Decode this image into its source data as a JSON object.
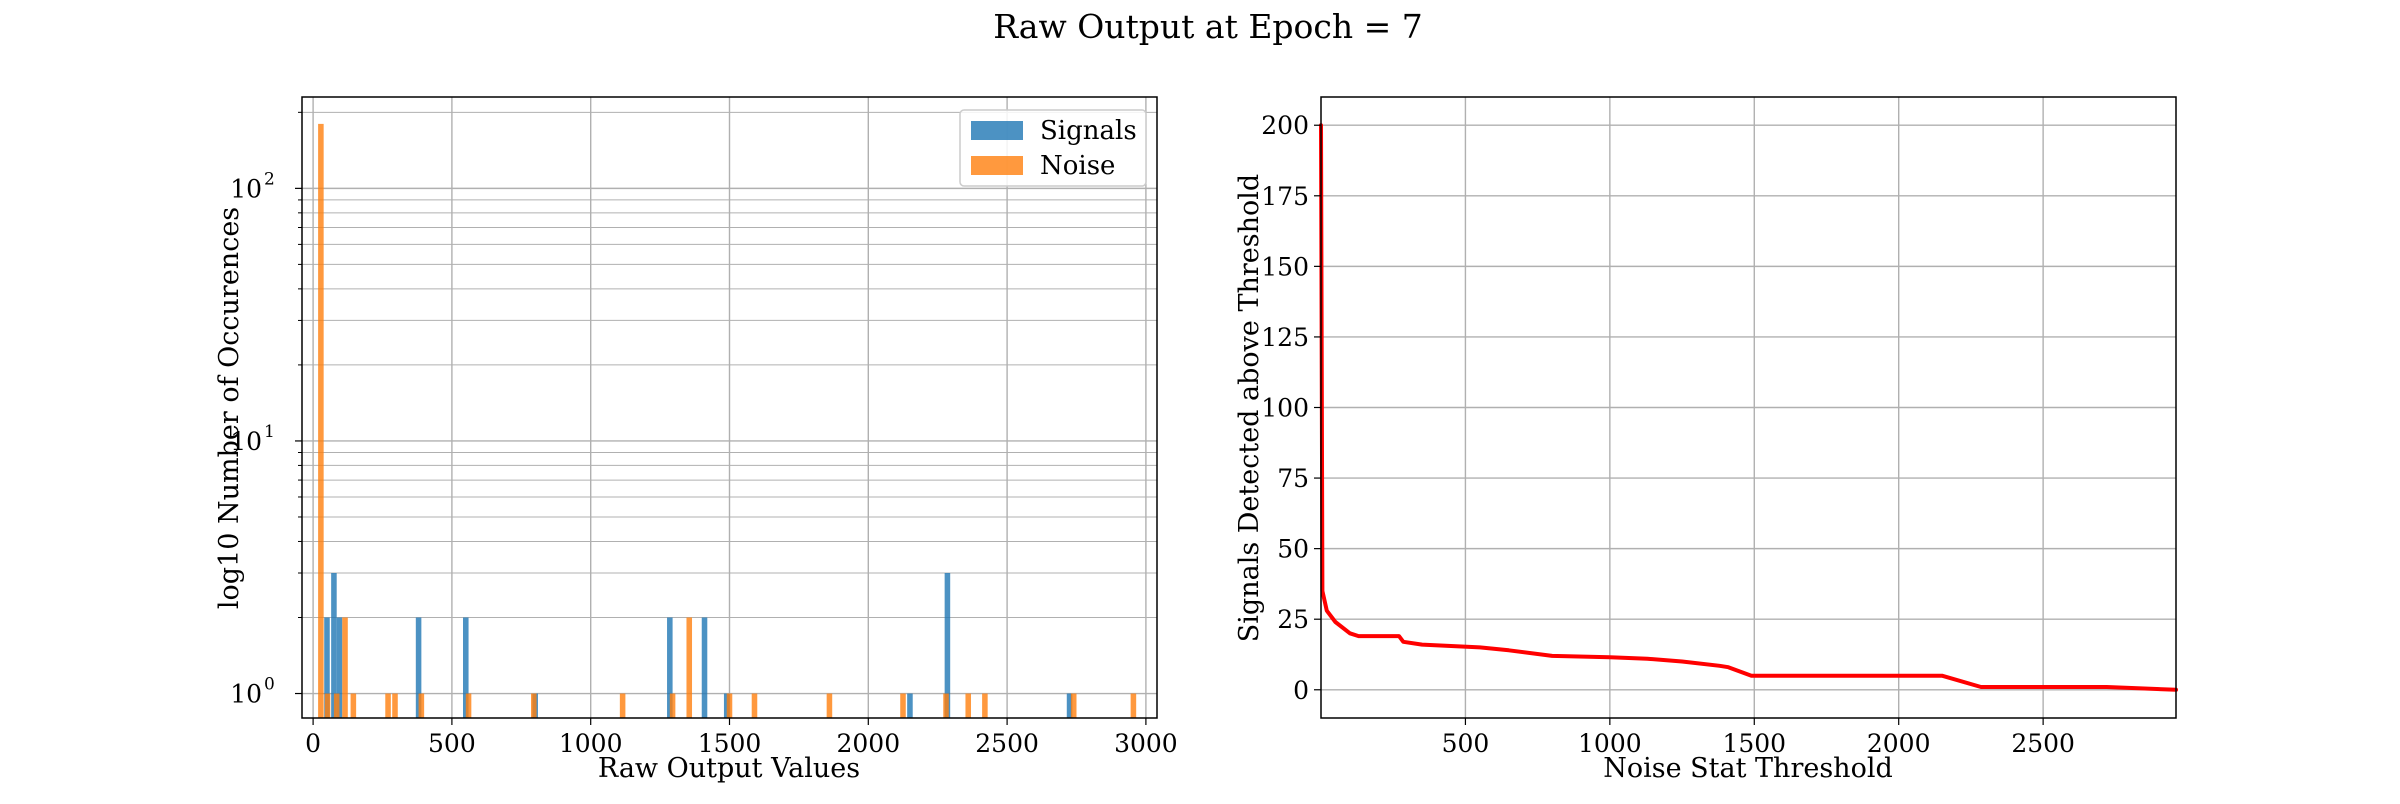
{
  "figure": {
    "title": "Raw Output at Epoch = 7"
  },
  "colors": {
    "signals": "#1f77b4",
    "noise": "#ff7f0e",
    "curve": "#ff0000",
    "grid": "#b0b0b0"
  },
  "chart_data": [
    {
      "type": "bar",
      "subtype": "histogram",
      "xlabel": "Raw Output Values",
      "ylabel": "log10 Number of Occurences",
      "xlim": [
        -40,
        3040
      ],
      "ylim": [
        0.8,
        230
      ],
      "yscale": "log",
      "grid": true,
      "legend": {
        "position": "top-right",
        "entries": [
          "Signals",
          "Noise"
        ]
      },
      "xticks": [
        0,
        500,
        1000,
        1500,
        2000,
        2500,
        3000
      ],
      "yticks": [
        {
          "value": 1,
          "mantissa": "10",
          "exponent": "0"
        },
        {
          "value": 10,
          "mantissa": "10",
          "exponent": "1"
        },
        {
          "value": 100,
          "mantissa": "10",
          "exponent": "2"
        }
      ],
      "bin_width": 20,
      "series": [
        {
          "name": "Signals",
          "color": "#1f77b4",
          "alpha": 0.8,
          "bars": [
            {
              "x": 50,
              "count": 2
            },
            {
              "x": 75,
              "count": 3
            },
            {
              "x": 95,
              "count": 2
            },
            {
              "x": 380,
              "count": 2
            },
            {
              "x": 550,
              "count": 2
            },
            {
              "x": 800,
              "count": 1
            },
            {
              "x": 1285,
              "count": 2
            },
            {
              "x": 1410,
              "count": 2
            },
            {
              "x": 1490,
              "count": 1
            },
            {
              "x": 2150,
              "count": 1
            },
            {
              "x": 2285,
              "count": 3
            },
            {
              "x": 2725,
              "count": 1
            }
          ]
        },
        {
          "name": "Noise",
          "color": "#ff7f0e",
          "alpha": 0.8,
          "bars": [
            {
              "x": 28,
              "count": 180
            },
            {
              "x": 52,
              "count": 1
            },
            {
              "x": 85,
              "count": 1
            },
            {
              "x": 115,
              "count": 2
            },
            {
              "x": 145,
              "count": 1
            },
            {
              "x": 270,
              "count": 1
            },
            {
              "x": 295,
              "count": 1
            },
            {
              "x": 390,
              "count": 1
            },
            {
              "x": 560,
              "count": 1
            },
            {
              "x": 795,
              "count": 1
            },
            {
              "x": 1115,
              "count": 1
            },
            {
              "x": 1295,
              "count": 1
            },
            {
              "x": 1355,
              "count": 2
            },
            {
              "x": 1500,
              "count": 1
            },
            {
              "x": 1590,
              "count": 1
            },
            {
              "x": 1860,
              "count": 1
            },
            {
              "x": 2125,
              "count": 1
            },
            {
              "x": 2280,
              "count": 1
            },
            {
              "x": 2360,
              "count": 1
            },
            {
              "x": 2420,
              "count": 1
            },
            {
              "x": 2740,
              "count": 1
            },
            {
              "x": 2955,
              "count": 1
            }
          ]
        }
      ]
    },
    {
      "type": "line",
      "xlabel": "Noise Stat Threshold",
      "ylabel": "Signals Detected above Threshold",
      "xlim": [
        0,
        2960
      ],
      "ylim": [
        -10,
        210
      ],
      "yscale": "linear",
      "grid": true,
      "xticks": [
        500,
        1000,
        1500,
        2000,
        2500
      ],
      "yticks": [
        0,
        25,
        50,
        75,
        100,
        125,
        150,
        175,
        200
      ],
      "series": [
        {
          "name": "",
          "color": "#ff0000",
          "points": [
            [
              0,
              200
            ],
            [
              5,
              35
            ],
            [
              20,
              28
            ],
            [
              50,
              24
            ],
            [
              100,
              20
            ],
            [
              130,
              19
            ],
            [
              200,
              19
            ],
            [
              270,
              19
            ],
            [
              285,
              17
            ],
            [
              350,
              16
            ],
            [
              450,
              15.5
            ],
            [
              550,
              15
            ],
            [
              650,
              14
            ],
            [
              800,
              12
            ],
            [
              1000,
              11.5
            ],
            [
              1130,
              11
            ],
            [
              1250,
              10
            ],
            [
              1380,
              8.5
            ],
            [
              1410,
              8
            ],
            [
              1490,
              5
            ],
            [
              2150,
              5
            ],
            [
              2285,
              1
            ],
            [
              2720,
              1
            ],
            [
              2960,
              0
            ]
          ]
        }
      ]
    }
  ]
}
